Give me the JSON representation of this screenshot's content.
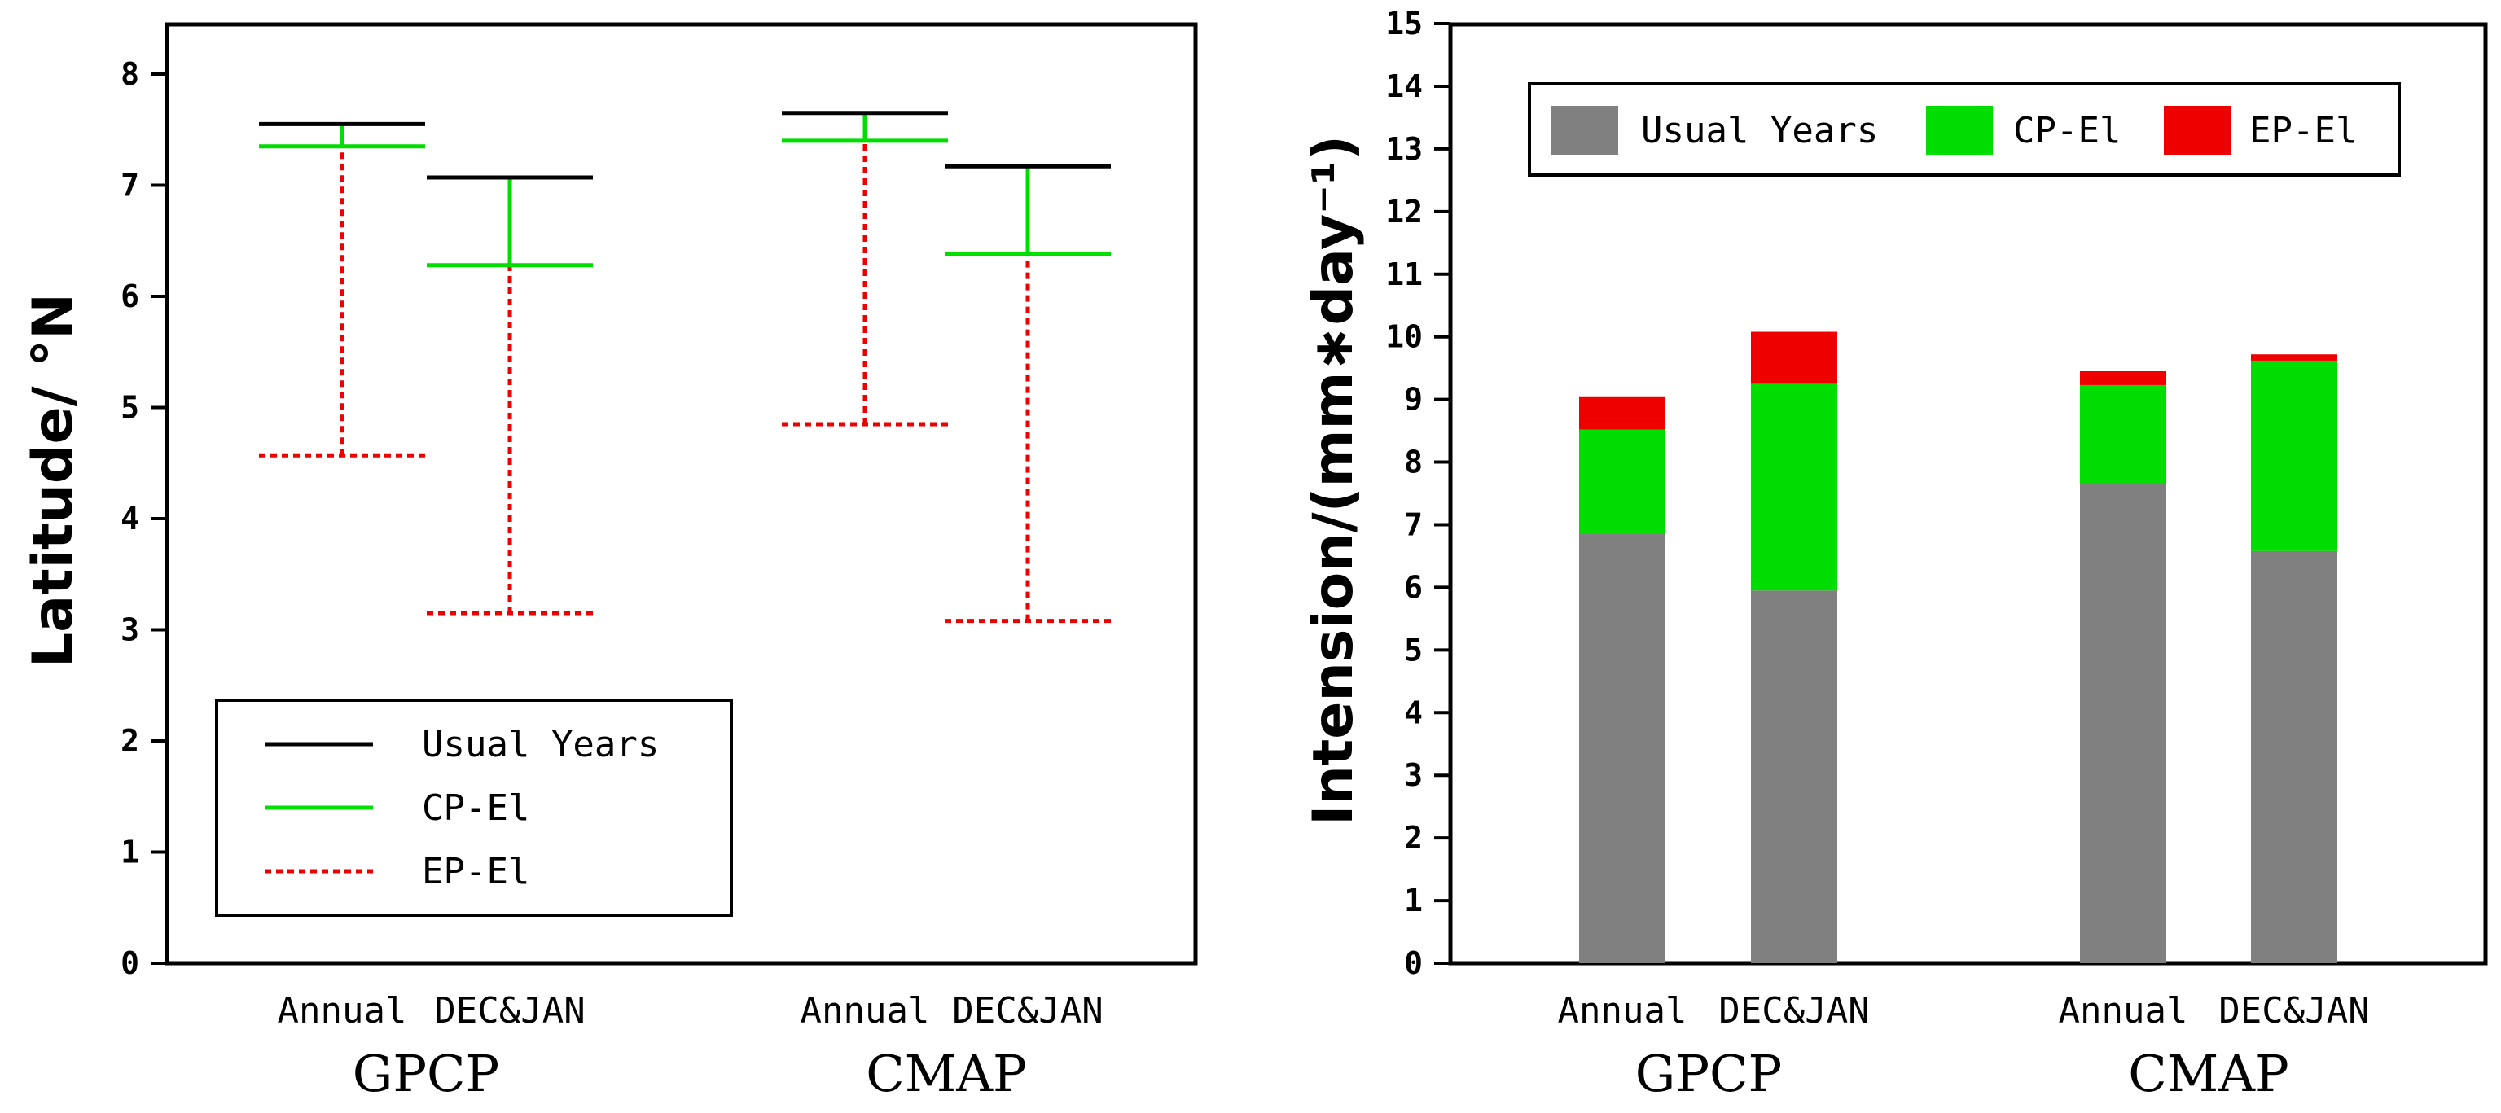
{
  "chart_data": [
    {
      "type": "range",
      "ylabel": "Latitude/ °N",
      "ylim": [
        0,
        8.5
      ],
      "yticks": [
        "0",
        "1",
        "2",
        "3",
        "4",
        "5",
        "6",
        "7",
        "8"
      ],
      "categories": [
        "Annual",
        "DEC&JAN",
        "Annual",
        "DEC&JAN"
      ],
      "groups": [
        "GPCP",
        "CMAP"
      ],
      "legend_position": "bottom-left",
      "series": [
        {
          "name": "Usual Years",
          "color": "#000000",
          "style": "solid",
          "values": [
            7.55,
            7.07,
            7.65,
            7.17
          ]
        },
        {
          "name": "CP-El",
          "color": "#00dd00",
          "style": "solid",
          "values": [
            7.35,
            6.28,
            7.4,
            6.38
          ]
        },
        {
          "name": "EP-El",
          "color": "#ee0000",
          "style": "dashed",
          "values": [
            4.57,
            3.15,
            4.85,
            3.08
          ]
        }
      ]
    },
    {
      "type": "bar",
      "stacked": true,
      "ylabel": "Intension/(mm∗day⁻¹)",
      "ylim": [
        0,
        15
      ],
      "yticks": [
        "0",
        "1",
        "2",
        "3",
        "4",
        "5",
        "6",
        "7",
        "8",
        "9",
        "10",
        "11",
        "12",
        "13",
        "14",
        "15"
      ],
      "categories": [
        "Annual",
        "DEC&JAN",
        "Annual",
        "DEC&JAN"
      ],
      "groups": [
        "GPCP",
        "CMAP"
      ],
      "legend_position": "top",
      "series": [
        {
          "name": "Usual Years",
          "color": "#808080",
          "values": [
            6.85,
            5.95,
            7.65,
            6.58
          ]
        },
        {
          "name": "CP-El",
          "color": "#00dd00",
          "values": [
            1.67,
            3.3,
            1.58,
            3.04
          ]
        },
        {
          "name": "EP-El",
          "color": "#ee0000",
          "values": [
            0.53,
            0.83,
            0.22,
            0.1
          ]
        }
      ]
    }
  ]
}
